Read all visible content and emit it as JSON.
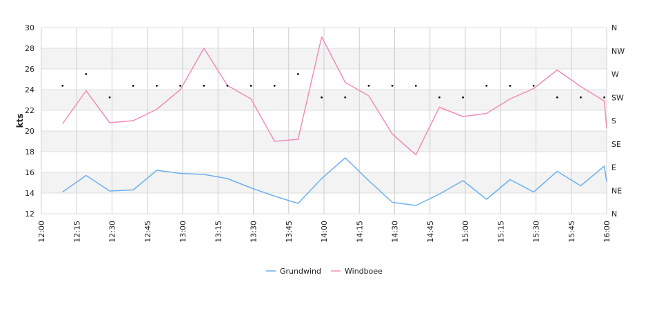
{
  "chart_data": {
    "type": "line",
    "title": "",
    "xlabel": "",
    "ylabel": "kts",
    "ylim": [
      12,
      30
    ],
    "y_ticks": [
      "12",
      "14",
      "16",
      "18",
      "20",
      "22",
      "24",
      "26",
      "28",
      "30"
    ],
    "x_tick_labels": [
      "12:00",
      "12:15",
      "12:30",
      "12:45",
      "13:00",
      "13:15",
      "13:30",
      "13:45",
      "14:00",
      "14:15",
      "14:30",
      "14:45",
      "15:00",
      "15:15",
      "15:30",
      "15:45",
      "16:00"
    ],
    "x_range_minutes": [
      0,
      240
    ],
    "direction_axis_labels": [
      "N",
      "NE",
      "E",
      "SE",
      "S",
      "SW",
      "W",
      "NW",
      "N"
    ],
    "grid": true,
    "legend_position": "bottom",
    "series": [
      {
        "name": "Grundwind",
        "color": "#6cb0ee",
        "x_minutes": [
          9,
          19,
          29,
          39,
          49,
          59,
          69,
          79,
          89,
          99,
          109,
          119,
          129,
          139,
          149,
          159,
          169,
          179,
          189,
          199,
          209,
          219,
          229,
          239,
          240
        ],
        "values": [
          14.1,
          15.7,
          14.2,
          14.3,
          16.2,
          15.9,
          15.8,
          15.4,
          14.5,
          13.7,
          13.0,
          15.4,
          17.4,
          15.2,
          13.1,
          12.8,
          13.9,
          15.2,
          13.4,
          15.3,
          14.1,
          16.1,
          14.7,
          16.6,
          15.1
        ]
      },
      {
        "name": "Windboee",
        "color": "#f08cbb",
        "x_minutes": [
          9,
          19,
          29,
          39,
          49,
          59,
          69,
          79,
          89,
          99,
          109,
          119,
          129,
          139,
          149,
          159,
          169,
          179,
          189,
          199,
          209,
          219,
          229,
          239,
          240
        ],
        "values": [
          20.7,
          23.9,
          20.8,
          21.0,
          22.1,
          24.0,
          28.0,
          24.4,
          23.1,
          19.0,
          19.2,
          29.1,
          24.7,
          23.4,
          19.7,
          17.7,
          22.3,
          21.4,
          21.7,
          23.1,
          24.1,
          25.9,
          24.3,
          22.9,
          20.3
        ]
      }
    ],
    "direction_points": {
      "x_minutes": [
        9,
        19,
        29,
        39,
        49,
        59,
        69,
        79,
        89,
        99,
        109,
        119,
        129,
        139,
        149,
        159,
        169,
        179,
        189,
        199,
        209,
        219,
        229,
        239
      ],
      "direction_index": [
        5.5,
        6.0,
        5.0,
        5.5,
        5.5,
        5.5,
        5.5,
        5.5,
        5.5,
        5.5,
        6.0,
        5.0,
        5.0,
        5.5,
        5.5,
        5.5,
        5.0,
        5.0,
        5.5,
        5.5,
        5.5,
        5.0,
        5.0,
        5.0
      ]
    }
  }
}
